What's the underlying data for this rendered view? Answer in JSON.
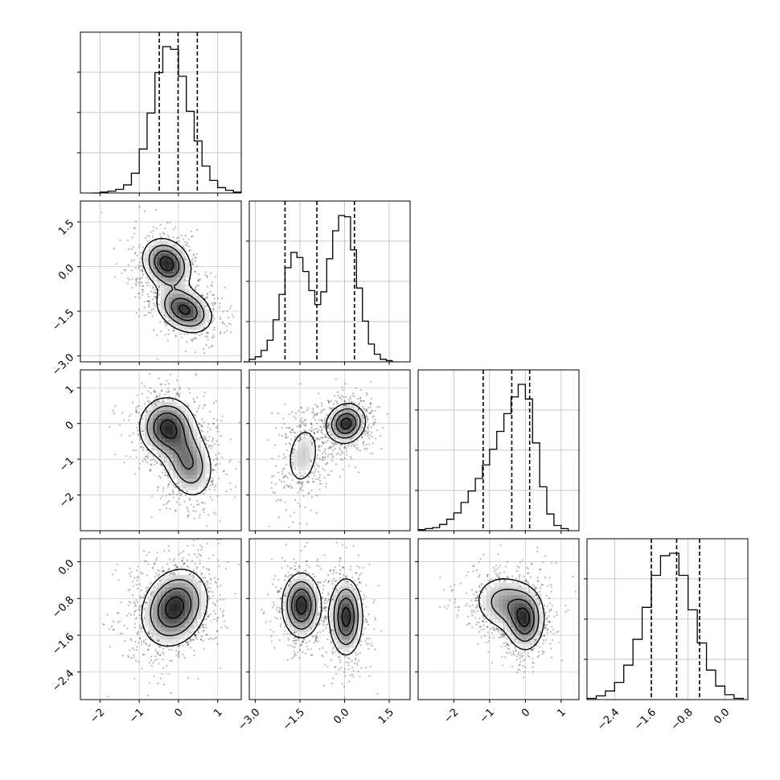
{
  "chart_data": {
    "type": "corner",
    "dimensions": 4,
    "grid": true,
    "marginals": [
      {
        "dim": 0,
        "bins": [
          -2.2,
          -2.0,
          -1.8,
          -1.6,
          -1.4,
          -1.2,
          -1.0,
          -0.8,
          -0.6,
          -0.4,
          -0.2,
          0.0,
          0.2,
          0.4,
          0.6,
          0.8,
          1.0,
          1.2,
          1.4,
          1.6
        ],
        "counts": [
          0,
          1,
          2,
          4,
          9,
          22,
          49,
          89,
          134,
          163,
          160,
          130,
          91,
          58,
          30,
          14,
          6,
          3,
          1
        ],
        "quantiles": [
          -0.49,
          -0.01,
          0.48
        ]
      },
      {
        "dim": 1,
        "bins": [
          -3.4,
          -3.2,
          -3.0,
          -2.8,
          -2.6,
          -2.4,
          -2.2,
          -2.0,
          -1.8,
          -1.6,
          -1.4,
          -1.2,
          -1.0,
          -0.8,
          -0.6,
          -0.4,
          -0.2,
          0.0,
          0.2,
          0.4,
          0.6,
          0.8,
          1.0,
          1.2,
          1.4,
          1.6
        ],
        "counts": [
          0,
          2,
          4,
          9,
          17,
          33,
          53,
          74,
          86,
          82,
          71,
          56,
          45,
          55,
          81,
          103,
          115,
          114,
          88,
          58,
          32,
          14,
          6,
          2,
          1
        ],
        "quantiles": [
          -2.0,
          -0.93,
          0.33
        ]
      },
      {
        "dim": 2,
        "bins": [
          -3.0,
          -2.8,
          -2.6,
          -2.4,
          -2.2,
          -2.0,
          -1.8,
          -1.6,
          -1.4,
          -1.2,
          -1.0,
          -0.8,
          -0.6,
          -0.4,
          -0.2,
          0.0,
          0.2,
          0.4,
          0.6,
          0.8,
          1.0,
          1.2
        ],
        "counts": [
          1,
          2,
          3,
          6,
          11,
          17,
          27,
          38,
          50,
          63,
          78,
          95,
          112,
          128,
          140,
          126,
          84,
          42,
          16,
          5,
          2
        ],
        "quantiles": [
          -1.18,
          -0.38,
          0.12
        ]
      },
      {
        "dim": 3,
        "bins": [
          -3.0,
          -2.8,
          -2.6,
          -2.4,
          -2.2,
          -2.0,
          -1.8,
          -1.6,
          -1.4,
          -1.2,
          -1.0,
          -0.8,
          -0.6,
          -0.4,
          -0.2,
          0.0,
          0.2,
          0.4
        ],
        "counts": [
          1,
          3,
          7,
          14,
          28,
          49,
          75,
          101,
          117,
          119,
          101,
          73,
          46,
          24,
          11,
          4,
          1
        ],
        "quantiles": [
          -1.6,
          -1.05,
          -0.55
        ]
      }
    ],
    "ranges": [
      [
        -2.5,
        1.6
      ],
      [
        -3.2,
        2.2
      ],
      [
        -3.0,
        1.5
      ],
      [
        -3.0,
        0.5
      ]
    ],
    "ticks": [
      {
        "values": [
          -2,
          -1,
          0,
          1
        ],
        "labels": [
          "−2",
          "−1",
          "0",
          "1"
        ]
      },
      {
        "values": [
          -3.0,
          -1.5,
          0.0,
          1.5
        ],
        "labels": [
          "−3.0",
          "−1.5",
          "0.0",
          "1.5"
        ]
      },
      {
        "values": [
          -2,
          -1,
          0,
          1
        ],
        "labels": [
          "−2",
          "−1",
          "0",
          "1"
        ]
      },
      {
        "values": [
          -2.4,
          -1.6,
          -0.8,
          0.0
        ],
        "labels": [
          "−2.4",
          "−1.6",
          "−0.8",
          "0.0"
        ]
      }
    ],
    "pairs": [
      {
        "x": 0,
        "y": 1,
        "modes": [
          {
            "mean": [
              -0.3,
              0.1
            ],
            "sd": [
              0.33,
              0.45
            ],
            "rho": -0.2,
            "w": 0.5
          },
          {
            "mean": [
              0.15,
              -1.45
            ],
            "sd": [
              0.38,
              0.42
            ],
            "rho": -0.3,
            "w": 0.5
          }
        ]
      },
      {
        "x": 0,
        "y": 2,
        "modes": [
          {
            "mean": [
              -0.3,
              -0.1
            ],
            "sd": [
              0.38,
              0.45
            ],
            "rho": 0.0,
            "w": 0.55
          },
          {
            "mean": [
              0.25,
              -1.1
            ],
            "sd": [
              0.35,
              0.55
            ],
            "rho": -0.2,
            "w": 0.45
          }
        ]
      },
      {
        "x": 1,
        "y": 2,
        "modes": [
          {
            "mean": [
              0.05,
              0.0
            ],
            "sd": [
              0.35,
              0.3
            ],
            "rho": 0.1,
            "w": 0.6
          },
          {
            "mean": [
              -1.4,
              -0.9
            ],
            "sd": [
              0.35,
              0.55
            ],
            "rho": 0.2,
            "w": 0.4
          }
        ]
      },
      {
        "x": 0,
        "y": 3,
        "modes": [
          {
            "mean": [
              -0.1,
              -1.0
            ],
            "sd": [
              0.45,
              0.45
            ],
            "rho": 0.2,
            "w": 1.0
          }
        ]
      },
      {
        "x": 1,
        "y": 3,
        "modes": [
          {
            "mean": [
              -1.45,
              -0.95
            ],
            "sd": [
              0.35,
              0.38
            ],
            "rho": 0.0,
            "w": 0.5
          },
          {
            "mean": [
              0.05,
              -1.2
            ],
            "sd": [
              0.3,
              0.45
            ],
            "rho": 0.0,
            "w": 0.5
          }
        ]
      },
      {
        "x": 2,
        "y": 3,
        "modes": [
          {
            "mean": [
              -0.55,
              -0.9
            ],
            "sd": [
              0.5,
              0.35
            ],
            "rho": -0.1,
            "w": 0.55
          },
          {
            "mean": [
              0.0,
              -1.3
            ],
            "sd": [
              0.28,
              0.35
            ],
            "rho": 0.0,
            "w": 0.45
          }
        ]
      }
    ]
  }
}
